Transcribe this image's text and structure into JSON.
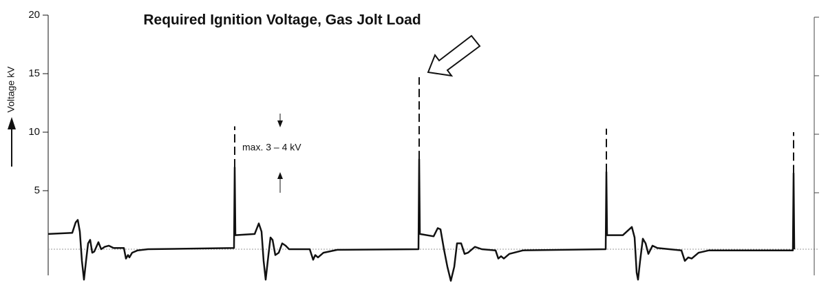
{
  "chart_data": {
    "type": "line",
    "title": "Required Ignition Voltage, Gas Jolt Load",
    "ylabel": "Voltage kV",
    "annotation": "max. 3 – 4 kV",
    "color": "#111111",
    "xlim": [
      0,
      1203
    ],
    "ylim": [
      -3,
      20
    ],
    "yticks": [
      5,
      10,
      15,
      20
    ],
    "x": [
      70,
      105,
      110,
      113,
      116,
      119,
      122,
      125,
      128,
      131,
      134,
      137,
      143,
      147,
      152,
      158,
      165,
      180,
      183,
      186,
      188,
      192,
      200,
      215,
      340,
      341,
      342,
      370,
      376,
      380,
      383,
      386,
      390,
      393,
      396,
      400,
      405,
      410,
      415,
      420,
      450,
      455,
      458,
      462,
      470,
      490,
      608,
      609,
      610,
      630,
      636,
      640,
      645,
      650,
      655,
      660,
      664,
      670,
      675,
      680,
      690,
      700,
      720,
      724,
      728,
      732,
      740,
      760,
      880,
      881,
      882,
      905,
      918,
      922,
      925,
      927,
      930,
      934,
      938,
      942,
      948,
      955,
      990,
      995,
      1000,
      1005,
      1015,
      1030,
      1152,
      1153,
      1154
    ],
    "values": [
      1.3,
      1.4,
      2.3,
      2.5,
      1.5,
      -1,
      -2.6,
      -1,
      0.5,
      0.8,
      -0.3,
      -0.2,
      0.6,
      0,
      0.2,
      0.3,
      0.1,
      0.1,
      -0.8,
      -0.5,
      -0.7,
      -0.3,
      -0.1,
      0,
      0.1,
      7,
      1.2,
      1.3,
      2.2,
      1.5,
      -1,
      -2.6,
      -0.5,
      1,
      0.8,
      -0.5,
      -0.3,
      0.5,
      0.3,
      0,
      0,
      -0.9,
      -0.5,
      -0.7,
      -0.3,
      -0.05,
      0,
      7.7,
      1.3,
      1.1,
      1.8,
      1.7,
      0,
      -1.5,
      -2.7,
      -1.5,
      0.5,
      0.5,
      -0.4,
      -0.3,
      0.2,
      0,
      -0.1,
      -0.8,
      -0.6,
      -0.8,
      -0.4,
      -0.1,
      0,
      6.6,
      1.2,
      1.2,
      1.9,
      1,
      -2,
      -2.6,
      -1,
      0.9,
      0.5,
      -0.4,
      0.3,
      0.1,
      -0.1,
      -1,
      -0.7,
      -0.8,
      -0.3,
      -0.1,
      -0.1,
      6.5,
      0
    ],
    "spikes": [
      {
        "x": 341,
        "values": [
          7,
          10.5
        ]
      },
      {
        "x": 609,
        "values": [
          7.7,
          14.7
        ]
      },
      {
        "x": 881,
        "values": [
          6.6,
          10.3
        ]
      },
      {
        "x": 1153,
        "values": [
          6.5,
          10
        ]
      }
    ]
  }
}
